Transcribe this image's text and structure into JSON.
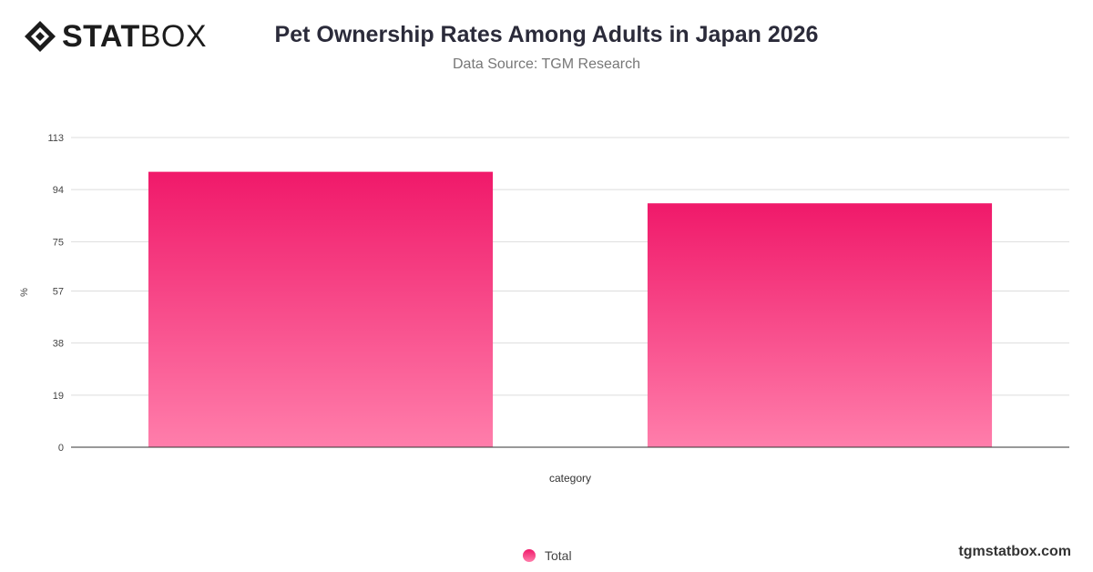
{
  "brand": {
    "logo_bold": "STAT",
    "logo_light": "BOX",
    "watermark": "tgmstatbox.com"
  },
  "header": {
    "title": "Pet Ownership Rates Among Adults in Japan 2026",
    "subtitle": "Data Source: TGM Research"
  },
  "colors": {
    "bar_top": "#f0196a",
    "bar_bottom": "#ff7eab",
    "grid": "#dddddd",
    "axis": "#333333"
  },
  "chart_data": {
    "type": "bar",
    "categories": [
      "",
      ""
    ],
    "series": [
      {
        "name": "Total",
        "values": [
          100.5,
          89.0
        ]
      }
    ],
    "xlabel": "category",
    "ylabel": "%",
    "ylim": [
      0,
      113
    ],
    "yticks": [
      0,
      19,
      38,
      57,
      75,
      94,
      113
    ],
    "grid": true,
    "legend": "bottom-center"
  }
}
